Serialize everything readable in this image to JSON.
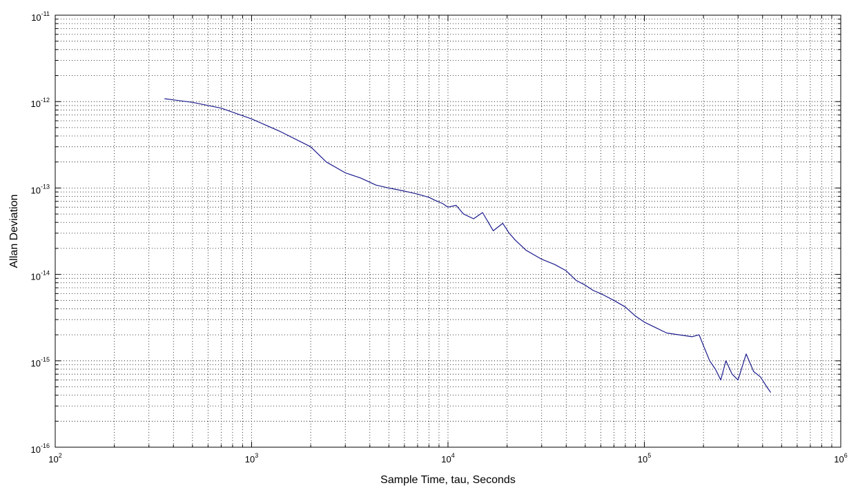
{
  "chart_data": {
    "type": "line",
    "title": "",
    "xlabel": "Sample Time, tau, Seconds",
    "ylabel": "Allan Deviation",
    "xscale": "log",
    "yscale": "log",
    "xlim": [
      100,
      1000000
    ],
    "ylim": [
      1e-16,
      1e-11
    ],
    "grid": "on (major and minor, dotted)",
    "x_ticks": [
      {
        "base": "10",
        "exp": "2"
      },
      {
        "base": "10",
        "exp": "3"
      },
      {
        "base": "10",
        "exp": "4"
      },
      {
        "base": "10",
        "exp": "5"
      },
      {
        "base": "10",
        "exp": "6"
      }
    ],
    "y_ticks": [
      {
        "base": "10",
        "exp": "-16"
      },
      {
        "base": "10",
        "exp": "-15"
      },
      {
        "base": "10",
        "exp": "-14"
      },
      {
        "base": "10",
        "exp": "-13"
      },
      {
        "base": "10",
        "exp": "-12"
      },
      {
        "base": "10",
        "exp": "-11"
      }
    ],
    "line_color": "#1a1a8c",
    "series": [
      {
        "x": [
          360,
          500,
          700,
          1000,
          1400,
          2000,
          2400,
          3000,
          3600,
          4300,
          5000,
          6000,
          7000,
          8000,
          8600,
          9400,
          10000,
          11000,
          12000,
          13500,
          15000,
          17000,
          19000,
          20500,
          22000,
          25000,
          30000,
          35000,
          40000,
          45000,
          50000,
          55000,
          60000,
          70000,
          80000,
          90000,
          100000,
          115000,
          130000,
          150000,
          175000,
          190000,
          200000,
          215000,
          230000,
          245000,
          260000,
          280000,
          300000,
          330000,
          360000,
          390000,
          420000,
          440000
        ],
        "y": [
          1.08e-12,
          9.8e-13,
          8.4e-13,
          6.3e-13,
          4.5e-13,
          3e-13,
          2e-13,
          1.5e-13,
          1.3e-13,
          1.08e-13,
          1e-13,
          9.2e-14,
          8.5e-14,
          7.8e-14,
          7.2e-14,
          6.6e-14,
          6e-14,
          6.3e-14,
          5e-14,
          4.4e-14,
          5.2e-14,
          3.2e-14,
          3.9e-14,
          3e-14,
          2.5e-14,
          1.9e-14,
          1.5e-14,
          1.3e-14,
          1.1e-14,
          8.5e-15,
          7.5e-15,
          6.5e-15,
          6e-15,
          5e-15,
          4.2e-15,
          3.3e-15,
          2.8e-15,
          2.4e-15,
          2.1e-15,
          2e-15,
          1.9e-15,
          2e-15,
          1.5e-15,
          1e-15,
          8e-16,
          6e-16,
          1e-15,
          7e-16,
          6e-16,
          1.2e-15,
          7.5e-16,
          6.5e-16,
          5e-16,
          4.3e-16
        ]
      }
    ]
  }
}
